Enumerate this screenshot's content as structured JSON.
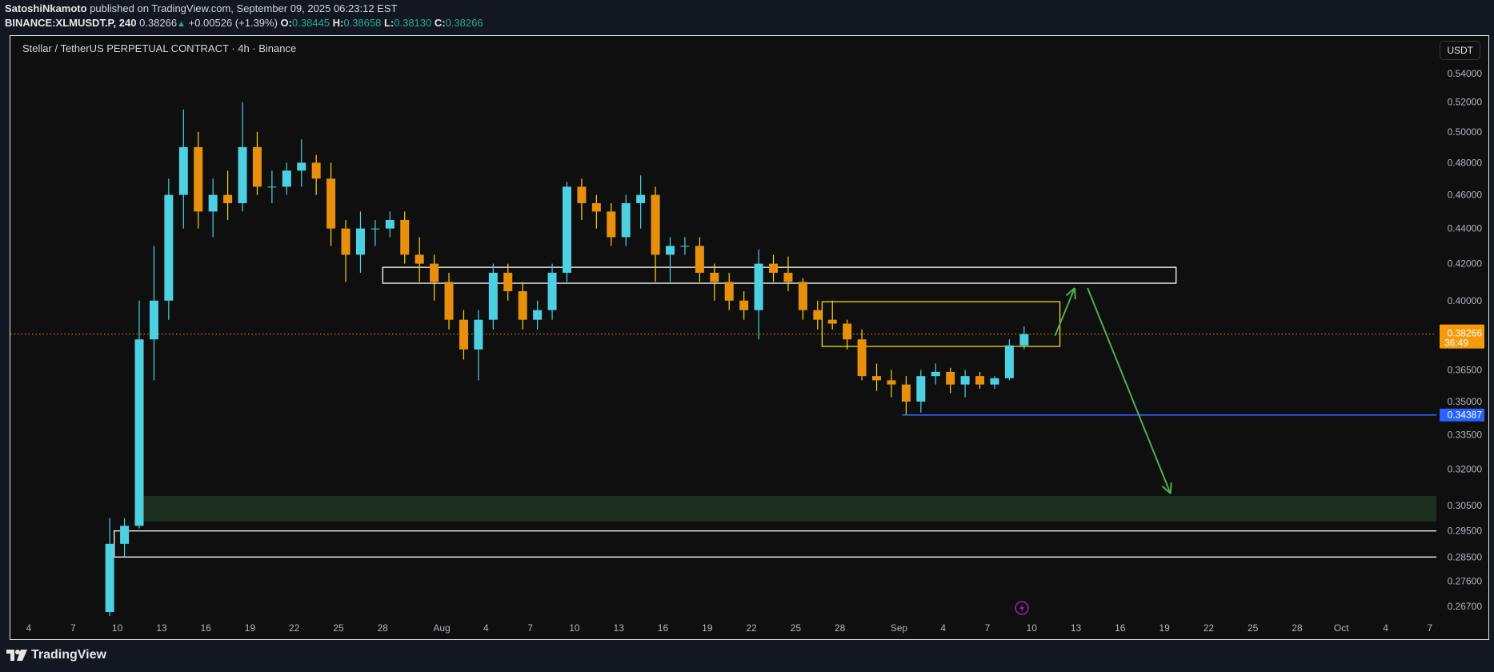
{
  "header": {
    "author": "SatoshiNkamoto",
    "published": "published on TradingView.com, September 09, 2025 06:23:12 EST",
    "symbol": "BINANCE:XLMUSDT.P, 240",
    "last": "0.38266",
    "change": "+0.00526 (+1.39%)",
    "o_label": "O:",
    "o": "0.38445",
    "h_label": "H:",
    "h": "0.38658",
    "l_label": "L:",
    "l": "0.38130",
    "c_label": "C:",
    "c": "0.38266"
  },
  "footer": {
    "brand": "TradingView"
  },
  "colors": {
    "bull": "#4dd0e1",
    "bear": "#e8900c",
    "bear_wick": "#f5d90a",
    "price_line": "#f59a0c",
    "support": "#2962ff",
    "zone_green": "#1c2e1e",
    "arrow": "#4caf50",
    "yellow_box": "#f5d90a"
  },
  "chart_data": {
    "type": "candlestick",
    "title": "Stellar / TetherUS PERPETUAL CONTRACT · 4h · Binance",
    "currency": "USDT",
    "scale": "log",
    "ylim": [
      0.262,
      0.552
    ],
    "y_ticks": [
      "0.54000",
      "0.52000",
      "0.50000",
      "0.48000",
      "0.46000",
      "0.44000",
      "0.42000",
      "0.40000",
      "0.36500",
      "0.35000",
      "0.33500",
      "0.32000",
      "0.30500",
      "0.29500",
      "0.28500",
      "0.27600",
      "0.26700"
    ],
    "x_ticks": [
      {
        "label": "4",
        "date": "2025-07-04"
      },
      {
        "label": "7",
        "date": "2025-07-07"
      },
      {
        "label": "10",
        "date": "2025-07-10"
      },
      {
        "label": "13",
        "date": "2025-07-13"
      },
      {
        "label": "16",
        "date": "2025-07-16"
      },
      {
        "label": "19",
        "date": "2025-07-19"
      },
      {
        "label": "22",
        "date": "2025-07-22"
      },
      {
        "label": "25",
        "date": "2025-07-25"
      },
      {
        "label": "28",
        "date": "2025-07-28"
      },
      {
        "label": "Aug",
        "date": "2025-08-01"
      },
      {
        "label": "4",
        "date": "2025-08-04"
      },
      {
        "label": "7",
        "date": "2025-08-07"
      },
      {
        "label": "10",
        "date": "2025-08-10"
      },
      {
        "label": "13",
        "date": "2025-08-13"
      },
      {
        "label": "16",
        "date": "2025-08-16"
      },
      {
        "label": "19",
        "date": "2025-08-19"
      },
      {
        "label": "22",
        "date": "2025-08-22"
      },
      {
        "label": "25",
        "date": "2025-08-25"
      },
      {
        "label": "28",
        "date": "2025-08-28"
      },
      {
        "label": "Sep",
        "date": "2025-09-01"
      },
      {
        "label": "4",
        "date": "2025-09-04"
      },
      {
        "label": "7",
        "date": "2025-09-07"
      },
      {
        "label": "10",
        "date": "2025-09-10"
      },
      {
        "label": "13",
        "date": "2025-09-13"
      },
      {
        "label": "16",
        "date": "2025-09-16"
      },
      {
        "label": "19",
        "date": "2025-09-19"
      },
      {
        "label": "22",
        "date": "2025-09-22"
      },
      {
        "label": "25",
        "date": "2025-09-25"
      },
      {
        "label": "28",
        "date": "2025-09-28"
      },
      {
        "label": "Oct",
        "date": "2025-10-01"
      },
      {
        "label": "4",
        "date": "2025-10-04"
      },
      {
        "label": "7",
        "date": "2025-10-07"
      }
    ],
    "candles_columns": [
      "date",
      "open",
      "high",
      "low",
      "close"
    ],
    "candles": [
      [
        "2025-07-09",
        0.265,
        0.3,
        0.263,
        0.29
      ],
      [
        "2025-07-10",
        0.29,
        0.3,
        0.285,
        0.297
      ],
      [
        "2025-07-11",
        0.297,
        0.4,
        0.296,
        0.38
      ],
      [
        "2025-07-12",
        0.38,
        0.43,
        0.36,
        0.4
      ],
      [
        "2025-07-13",
        0.4,
        0.47,
        0.39,
        0.46
      ],
      [
        "2025-07-14",
        0.46,
        0.515,
        0.44,
        0.49
      ],
      [
        "2025-07-15",
        0.49,
        0.5,
        0.44,
        0.45
      ],
      [
        "2025-07-16",
        0.45,
        0.47,
        0.435,
        0.46
      ],
      [
        "2025-07-17",
        0.46,
        0.475,
        0.445,
        0.455
      ],
      [
        "2025-07-18",
        0.455,
        0.52,
        0.45,
        0.49
      ],
      [
        "2025-07-19",
        0.49,
        0.5,
        0.46,
        0.465
      ],
      [
        "2025-07-20",
        0.465,
        0.475,
        0.455,
        0.465
      ],
      [
        "2025-07-21",
        0.465,
        0.48,
        0.46,
        0.475
      ],
      [
        "2025-07-22",
        0.475,
        0.495,
        0.465,
        0.48
      ],
      [
        "2025-07-23",
        0.48,
        0.485,
        0.46,
        0.47
      ],
      [
        "2025-07-24",
        0.47,
        0.48,
        0.43,
        0.44
      ],
      [
        "2025-07-25",
        0.44,
        0.445,
        0.41,
        0.425
      ],
      [
        "2025-07-26",
        0.425,
        0.45,
        0.415,
        0.44
      ],
      [
        "2025-07-27",
        0.44,
        0.445,
        0.43,
        0.44
      ],
      [
        "2025-07-28",
        0.44,
        0.45,
        0.435,
        0.445
      ],
      [
        "2025-07-29",
        0.445,
        0.45,
        0.42,
        0.425
      ],
      [
        "2025-07-30",
        0.425,
        0.435,
        0.41,
        0.42
      ],
      [
        "2025-07-31",
        0.42,
        0.425,
        0.4,
        0.41
      ],
      [
        "2025-08-01",
        0.41,
        0.415,
        0.385,
        0.39
      ],
      [
        "2025-08-02",
        0.39,
        0.395,
        0.37,
        0.375
      ],
      [
        "2025-08-03",
        0.375,
        0.395,
        0.36,
        0.39
      ],
      [
        "2025-08-04",
        0.39,
        0.42,
        0.385,
        0.415
      ],
      [
        "2025-08-05",
        0.415,
        0.42,
        0.4,
        0.405
      ],
      [
        "2025-08-06",
        0.405,
        0.41,
        0.385,
        0.39
      ],
      [
        "2025-08-07",
        0.39,
        0.4,
        0.385,
        0.395
      ],
      [
        "2025-08-08",
        0.395,
        0.42,
        0.39,
        0.415
      ],
      [
        "2025-08-09",
        0.415,
        0.468,
        0.41,
        0.465
      ],
      [
        "2025-08-10",
        0.465,
        0.47,
        0.445,
        0.455
      ],
      [
        "2025-08-11",
        0.455,
        0.46,
        0.44,
        0.45
      ],
      [
        "2025-08-12",
        0.45,
        0.455,
        0.43,
        0.435
      ],
      [
        "2025-08-13",
        0.435,
        0.46,
        0.43,
        0.455
      ],
      [
        "2025-08-14",
        0.455,
        0.472,
        0.44,
        0.46
      ],
      [
        "2025-08-15",
        0.46,
        0.465,
        0.41,
        0.425
      ],
      [
        "2025-08-16",
        0.425,
        0.435,
        0.41,
        0.43
      ],
      [
        "2025-08-17",
        0.43,
        0.435,
        0.425,
        0.43
      ],
      [
        "2025-08-18",
        0.43,
        0.435,
        0.41,
        0.415
      ],
      [
        "2025-08-19",
        0.415,
        0.42,
        0.4,
        0.41
      ],
      [
        "2025-08-20",
        0.41,
        0.415,
        0.395,
        0.4
      ],
      [
        "2025-08-21",
        0.4,
        0.405,
        0.39,
        0.395
      ],
      [
        "2025-08-22",
        0.395,
        0.428,
        0.38,
        0.42
      ],
      [
        "2025-08-23",
        0.42,
        0.425,
        0.41,
        0.415
      ],
      [
        "2025-08-24",
        0.415,
        0.424,
        0.405,
        0.41
      ],
      [
        "2025-08-25",
        0.41,
        0.412,
        0.39,
        0.395
      ],
      [
        "2025-08-26",
        0.395,
        0.4,
        0.385,
        0.39
      ],
      [
        "2025-08-27",
        0.39,
        0.4,
        0.385,
        0.388
      ],
      [
        "2025-08-28",
        0.388,
        0.39,
        0.375,
        0.38
      ],
      [
        "2025-08-29",
        0.38,
        0.385,
        0.36,
        0.362
      ],
      [
        "2025-08-30",
        0.362,
        0.368,
        0.355,
        0.36
      ],
      [
        "2025-08-31",
        0.36,
        0.365,
        0.352,
        0.358
      ],
      [
        "2025-09-01",
        0.358,
        0.362,
        0.344,
        0.35
      ],
      [
        "2025-09-02",
        0.35,
        0.365,
        0.345,
        0.362
      ],
      [
        "2025-09-03",
        0.362,
        0.368,
        0.358,
        0.364
      ],
      [
        "2025-09-04",
        0.364,
        0.366,
        0.354,
        0.358
      ],
      [
        "2025-09-05",
        0.358,
        0.365,
        0.352,
        0.362
      ],
      [
        "2025-09-06",
        0.362,
        0.364,
        0.356,
        0.358
      ],
      [
        "2025-09-07",
        0.358,
        0.362,
        0.356,
        0.361
      ],
      [
        "2025-09-08",
        0.361,
        0.38,
        0.36,
        0.377
      ],
      [
        "2025-09-09",
        0.377,
        0.3866,
        0.375,
        0.38266
      ]
    ],
    "last_price": {
      "label": "0.38266",
      "price": 0.38266,
      "countdown": "36:49"
    },
    "support": {
      "label": "0.34387",
      "price": 0.34387,
      "from": "2025-09-01T05:00"
    },
    "drawings": {
      "resistance_zone": {
        "from": "2025-07-28T00:00",
        "to": "2025-09-19T19:00",
        "top": 0.418,
        "bottom": 0.4093
      },
      "yellow_box": {
        "from": "2025-08-26T19:00",
        "to": "2025-09-11T22:00",
        "top": 0.3994,
        "bottom": 0.3765
      },
      "green_zone": {
        "from": "2025-07-11T05:00",
        "top": 0.3089,
        "bottom": 0.2987
      },
      "white_box": {
        "from": "2025-07-09T19:00",
        "top": 0.295,
        "bottom": 0.285
      },
      "arrow_up": {
        "from": [
          "2025-09-11T14:00",
          0.3818
        ],
        "to": [
          "2025-09-12T22:00",
          0.4067
        ]
      },
      "arrow_down": {
        "from": [
          "2025-09-13T19:00",
          0.4067
        ],
        "to": [
          "2025-09-19T10:00",
          0.3099
        ]
      }
    }
  }
}
